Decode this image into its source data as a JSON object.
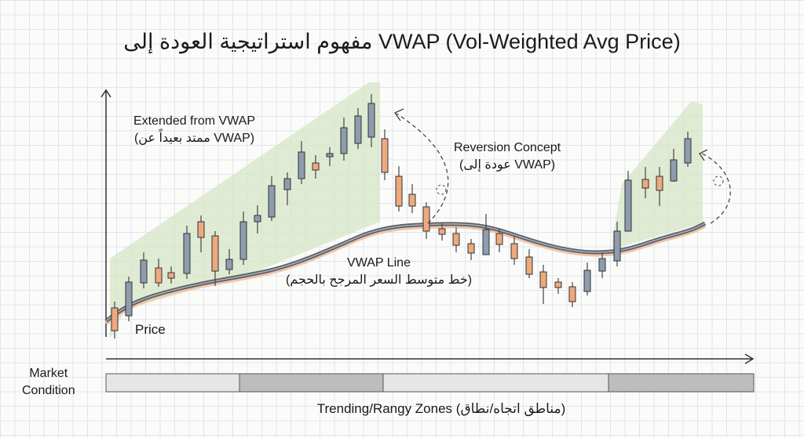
{
  "title": "مفهوم استراتيجية العودة إلى VWAP (Vol-Weighted Avg Price)",
  "labels": {
    "extended_en": "Extended from VWAP",
    "extended_ar": "(ممتد بعيداً عن VWAP)",
    "reversion_en": "Reversion Concept",
    "reversion_ar": "(عودة إلى VWAP)",
    "vwap_en": "VWAP Line",
    "vwap_ar": "(خط متوسط السعر المرجح بالحجم)",
    "price": "Price",
    "market_condition": "Market\nCondition",
    "zones": "Trending/Rangy Zones (مناطق اتجاه/نطاق)"
  },
  "colors": {
    "bullish_candle": "#8e9dad",
    "bearish_candle": "#eea97f",
    "extended_zone": "#d5e6c6",
    "vwap_line": "#5c6066",
    "trending_zone": "#bdbdbd",
    "range_zone": "#e6e6e6"
  },
  "zone_sequence": [
    "range",
    "trending",
    "range",
    "trending"
  ]
}
